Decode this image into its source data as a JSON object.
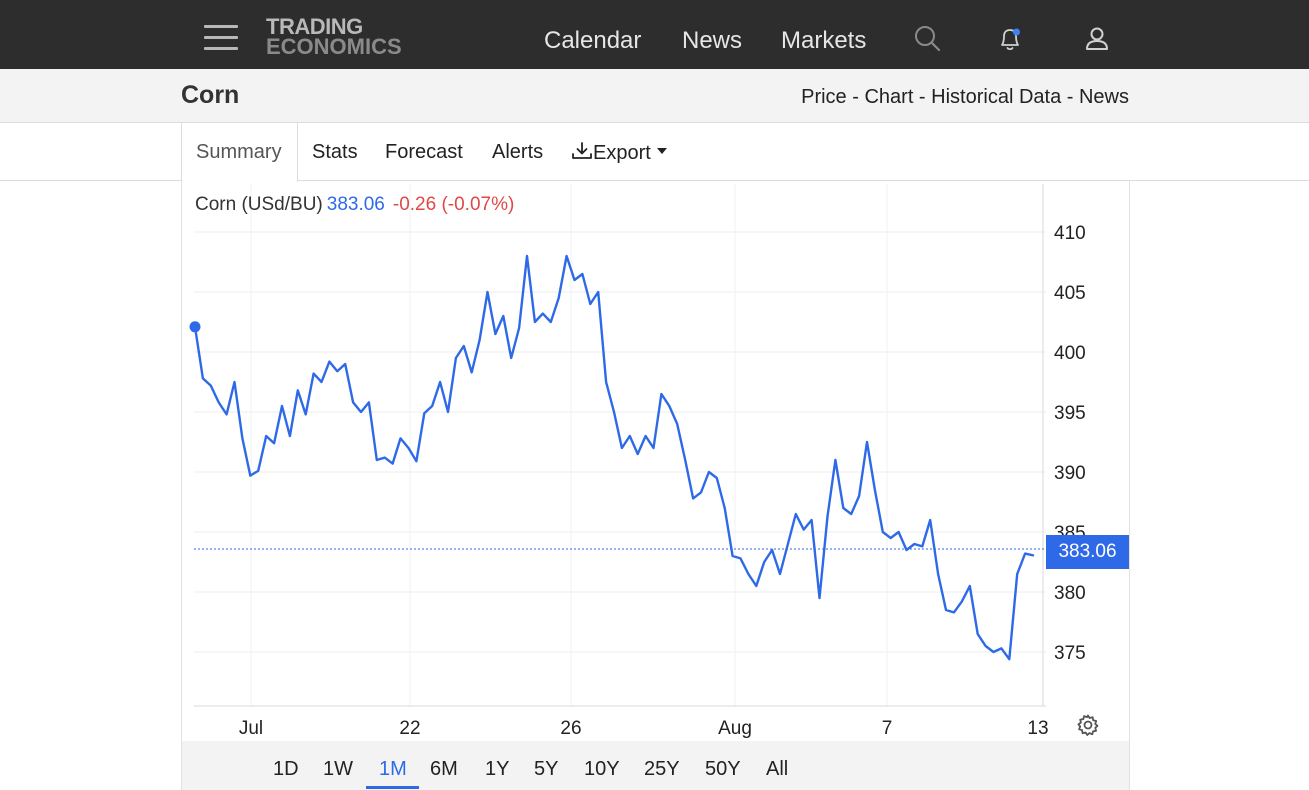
{
  "nav": {
    "logo_line1": "TRADING",
    "logo_line2": "ECONOMICS",
    "links": [
      "Calendar",
      "News",
      "Markets"
    ],
    "icons": [
      "menu-icon",
      "search-icon",
      "bell-icon",
      "user-icon"
    ]
  },
  "subheader": {
    "title": "Corn",
    "crumbs": [
      "Price",
      "Chart",
      "Historical Data",
      "News"
    ],
    "separator": " - "
  },
  "tabs": [
    "Summary",
    "Stats",
    "Forecast",
    "Alerts",
    "Export"
  ],
  "active_tab": "Summary",
  "legend": {
    "name": "Corn (USd/BU)",
    "price": "383.06",
    "change": "-0.26 (-0.07%)"
  },
  "price_tag": "383.06",
  "ranges": [
    "1D",
    "1W",
    "1M",
    "6M",
    "1Y",
    "5Y",
    "10Y",
    "25Y",
    "50Y",
    "All"
  ],
  "active_range": "1M",
  "colors": {
    "series": "#2e6ae8",
    "negative": "#e04848",
    "nav_bg": "#2d2d2d"
  },
  "chart_data": {
    "type": "line",
    "title": "Corn (USd/BU)",
    "x_tick_labels": [
      "Jul",
      "22",
      "26",
      "Aug",
      "7",
      "13"
    ],
    "y_tick_labels": [
      "410",
      "405",
      "400",
      "395",
      "390",
      "385",
      "380",
      "375"
    ],
    "ylim": [
      370.5,
      414
    ],
    "grid": true,
    "last_value": 383.06,
    "series": [
      {
        "values": [
          402.1,
          397.8,
          397.2,
          395.8,
          394.8,
          397.5,
          392.8,
          389.7,
          390.1,
          393.0,
          392.4,
          395.5,
          393.0,
          396.8,
          394.8,
          398.2,
          397.5,
          399.2,
          398.4,
          399.0,
          395.8,
          395.0,
          395.8,
          391.0,
          391.2,
          390.7,
          392.8,
          392.0,
          390.9,
          394.9,
          395.5,
          397.5,
          395.0,
          399.5,
          400.5,
          398.3,
          401.0,
          405.0,
          401.5,
          403.0,
          399.5,
          402.0,
          408.0,
          402.5,
          403.2,
          402.5,
          404.5,
          408.0,
          406.0,
          406.5,
          404.0,
          405.0,
          397.5,
          395.0,
          392.0,
          393.0,
          391.5,
          393.0,
          392.0,
          396.5,
          395.5,
          394.0,
          391.0,
          387.8,
          388.3,
          390.0,
          389.5,
          387.0,
          383.0,
          382.8,
          381.5,
          380.5,
          382.5,
          383.5,
          381.5,
          384.0,
          386.5,
          385.2,
          386.0,
          379.5,
          386.3,
          391.0,
          387.0,
          386.5,
          388.0,
          392.5,
          388.5,
          385.0,
          384.5,
          385.0,
          383.5,
          384.0,
          383.8,
          386.0,
          381.5,
          378.5,
          378.3,
          379.2,
          380.5,
          376.5,
          375.5,
          375.0,
          375.3,
          374.4,
          381.5,
          383.2,
          383.06
        ]
      }
    ]
  }
}
